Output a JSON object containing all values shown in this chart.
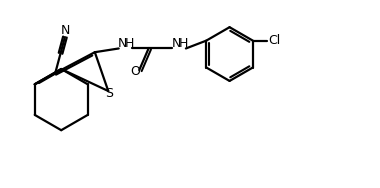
{
  "bg_color": "#ffffff",
  "line_color": "#000000",
  "line_width": 1.6,
  "fig_width": 3.8,
  "fig_height": 1.88,
  "dpi": 100,
  "xlim": [
    0,
    10
  ],
  "ylim": [
    0,
    5
  ]
}
